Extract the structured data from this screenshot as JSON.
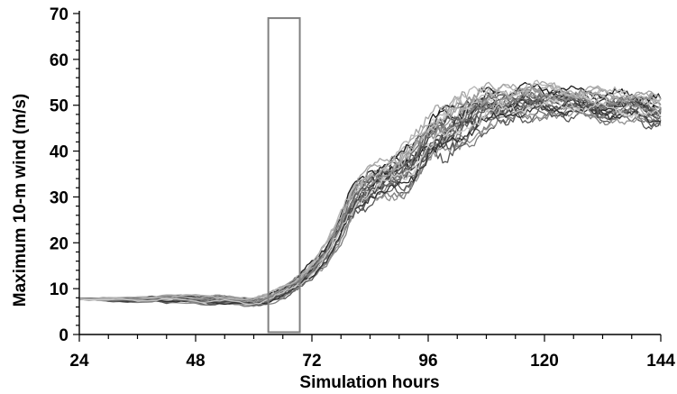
{
  "chart_data": {
    "type": "line",
    "title": "",
    "xlabel": "Simulation hours",
    "ylabel": "Maximum 10-m wind (m/s)",
    "xlim": [
      24,
      144
    ],
    "ylim": [
      0,
      70
    ],
    "x_ticks": [
      24,
      48,
      72,
      96,
      120,
      144
    ],
    "y_ticks": [
      0,
      10,
      20,
      30,
      40,
      50,
      60,
      70
    ],
    "x_tick_labels": [
      "24",
      "48",
      "72",
      "96",
      "120",
      "144"
    ],
    "y_tick_labels": [
      "0",
      "10",
      "20",
      "30",
      "40",
      "50",
      "60",
      "70"
    ],
    "grid": false,
    "legend": "none",
    "n_members": 30,
    "highlight_box": {
      "x_start": 63,
      "x_end": 69.5,
      "y_start": 0.5,
      "y_end": 69
    },
    "x": [
      24,
      30,
      36,
      42,
      48,
      54,
      60,
      63,
      66,
      69,
      72,
      75,
      78,
      81,
      84,
      87,
      90,
      93,
      96,
      99,
      102,
      105,
      108,
      111,
      114,
      117,
      120,
      123,
      126,
      129,
      132,
      135,
      138,
      141,
      144
    ],
    "ensemble_mean": [
      7.8,
      7.6,
      7.6,
      7.8,
      7.7,
      7.4,
      7.1,
      7.8,
      9.2,
      11.2,
      14.0,
      17.5,
      23.5,
      30.0,
      32.5,
      33.5,
      35.0,
      38.0,
      42.0,
      44.0,
      46.0,
      47.5,
      49.0,
      50.0,
      50.5,
      51.0,
      51.0,
      50.8,
      50.5,
      50.3,
      50.0,
      49.8,
      49.5,
      49.0,
      48.5
    ],
    "ensemble_spread": [
      0.0,
      0.2,
      0.3,
      0.5,
      0.6,
      0.6,
      0.6,
      0.7,
      0.9,
      1.1,
      1.3,
      1.6,
      2.2,
      2.6,
      2.8,
      3.0,
      3.3,
      3.6,
      3.8,
      3.9,
      3.9,
      3.6,
      3.2,
      3.0,
      2.7,
      2.6,
      2.4,
      2.3,
      2.3,
      2.3,
      2.3,
      2.3,
      2.3,
      2.4,
      2.5
    ],
    "colors": {
      "members": [
        "#1a1a1a",
        "#2e2e2e",
        "#404040",
        "#555555",
        "#6a6a6a",
        "#7d7d7d",
        "#909090",
        "#a3a3a3",
        "#b5b5b5",
        "#c8c8c8"
      ],
      "box": "#808080",
      "axis": "#000000"
    }
  }
}
